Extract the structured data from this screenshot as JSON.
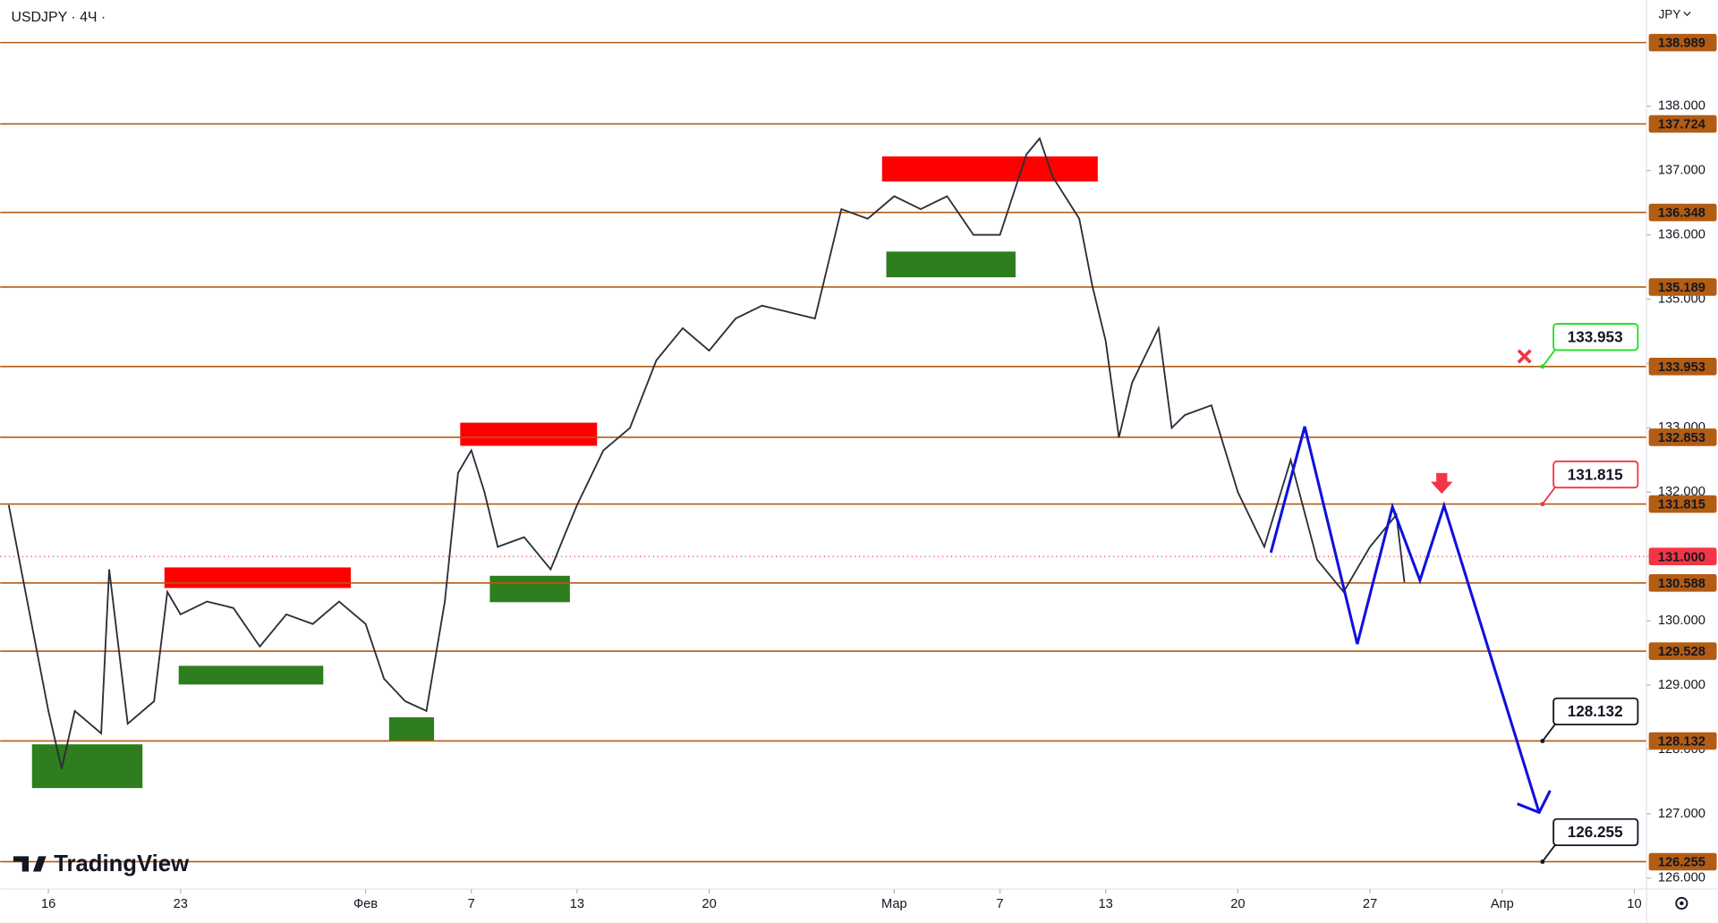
{
  "header": {
    "symbol": "USDJPY · 4Ч ·",
    "currency": "JPY",
    "logo": "TradingView"
  },
  "chart_data": {
    "type": "line",
    "xlim": [
      -1.823,
      60.464
    ],
    "ylim": [
      125.83,
      139.651
    ],
    "xticks": [
      {
        "value": 0,
        "label": "16"
      },
      {
        "value": 5,
        "label": "23"
      },
      {
        "value": 12,
        "label": "Фев"
      },
      {
        "value": 16,
        "label": "7"
      },
      {
        "value": 20,
        "label": "13"
      },
      {
        "value": 25,
        "label": "20"
      },
      {
        "value": 32,
        "label": "Мар"
      },
      {
        "value": 36,
        "label": "7"
      },
      {
        "value": 40,
        "label": "13"
      },
      {
        "value": 45,
        "label": "20"
      },
      {
        "value": 50,
        "label": "27"
      },
      {
        "value": 55,
        "label": "Апр"
      },
      {
        "value": 60,
        "label": "10"
      }
    ],
    "yticks": [
      {
        "value": 126,
        "label": "126.000"
      },
      {
        "value": 127,
        "label": "127.000"
      },
      {
        "value": 128,
        "label": "128.000"
      },
      {
        "value": 129,
        "label": "129.000"
      },
      {
        "value": 130,
        "label": "130.000"
      },
      {
        "value": 131,
        "label": "131.000"
      },
      {
        "value": 132,
        "label": "132.000"
      },
      {
        "value": 133,
        "label": "133.000"
      },
      {
        "value": 134,
        "label": "134.000"
      },
      {
        "value": 135,
        "label": "135.000"
      },
      {
        "value": 136,
        "label": "136.000"
      },
      {
        "value": 137,
        "label": "137.000"
      },
      {
        "value": 138,
        "label": "138.000"
      }
    ],
    "series": [
      {
        "color": "#2a2e39",
        "x": [
          -1.5,
          0,
          0.5,
          1,
          2,
          2.3,
          3,
          4,
          4.5,
          5,
          6,
          7,
          8,
          9,
          10,
          11,
          12,
          12.7,
          13.5,
          14.3,
          15,
          15.5,
          16,
          16.5,
          17,
          18,
          19,
          19.5,
          20,
          21,
          22,
          23,
          24,
          25,
          26,
          27,
          28,
          29,
          30,
          31,
          32,
          33,
          34,
          35,
          36,
          37,
          37.5,
          38,
          39,
          39.5,
          40,
          40.5,
          41,
          42,
          42.5,
          43,
          44,
          45,
          46,
          47,
          48,
          49,
          50,
          51,
          51.3
        ],
        "values": [
          131.8,
          128.6,
          127.7,
          128.6,
          128.25,
          130.8,
          128.4,
          128.75,
          130.45,
          130.1,
          130.3,
          130.2,
          129.6,
          130.1,
          129.95,
          130.3,
          129.95,
          129.1,
          128.75,
          128.6,
          130.3,
          132.3,
          132.65,
          132.0,
          131.15,
          131.3,
          130.8,
          131.3,
          131.8,
          132.65,
          133.0,
          134.05,
          134.55,
          134.2,
          134.7,
          134.9,
          134.8,
          134.7,
          136.4,
          136.25,
          136.6,
          136.4,
          136.6,
          136.0,
          136.0,
          137.25,
          137.5,
          136.9,
          136.25,
          135.2,
          134.35,
          132.85,
          133.7,
          134.55,
          133.0,
          133.2,
          133.35,
          132.0,
          131.15,
          132.5,
          130.95,
          130.45,
          131.15,
          131.65,
          130.6
        ]
      }
    ],
    "projection": {
      "color": "#1010dd",
      "x": [
        46.25,
        47.53,
        49.52,
        50.85,
        51.89,
        52.8,
        56.4
      ],
      "values": [
        131.06,
        133.02,
        129.64,
        131.77,
        130.63,
        131.79,
        127.02
      ]
    },
    "levels": {
      "color": "#b35c14",
      "items": [
        {
          "value": 138.989,
          "label": "138.989"
        },
        {
          "value": 137.724,
          "label": "137.724"
        },
        {
          "value": 136.348,
          "label": "136.348"
        },
        {
          "value": 135.189,
          "label": "135.189"
        },
        {
          "value": 133.953,
          "label": "133.953"
        },
        {
          "value": 132.853,
          "label": "132.853"
        },
        {
          "value": 131.815,
          "label": "131.815"
        },
        {
          "value": 130.588,
          "label": "130.588"
        },
        {
          "value": 129.528,
          "label": "129.528"
        },
        {
          "value": 128.132,
          "label": "128.132"
        },
        {
          "value": 126.255,
          "label": "126.255"
        }
      ]
    },
    "last_price": {
      "value": 131,
      "label": "131.000",
      "color": "#f23645"
    },
    "callouts": [
      {
        "value": 133.953,
        "label": "133.953",
        "color": "#22dd22"
      },
      {
        "value": 131.815,
        "label": "131.815",
        "color": "#f23645"
      },
      {
        "value": 128.132,
        "label": "128.132",
        "color": "#131722"
      },
      {
        "value": 126.255,
        "label": "126.255",
        "color": "#131722"
      }
    ],
    "zones": [
      {
        "color": "#ff0000",
        "x": [
          4.39,
          11.44
        ],
        "values": [
          130.51,
          130.83
        ]
      },
      {
        "color": "#ff0000",
        "x": [
          15.58,
          20.76
        ],
        "values": [
          132.72,
          133.08
        ]
      },
      {
        "color": "#ff0000",
        "x": [
          31.54,
          39.7
        ],
        "values": [
          136.83,
          137.22
        ]
      },
      {
        "color": "#2e7d1e",
        "x": [
          -0.62,
          3.56
        ],
        "values": [
          127.4,
          128.08
        ]
      },
      {
        "color": "#2e7d1e",
        "x": [
          4.93,
          10.4
        ],
        "values": [
          129.01,
          129.3
        ]
      },
      {
        "color": "#2e7d1e",
        "x": [
          12.89,
          14.59
        ],
        "values": [
          128.13,
          128.5
        ]
      },
      {
        "color": "#2e7d1e",
        "x": [
          16.7,
          19.73
        ],
        "values": [
          130.29,
          130.7
        ]
      },
      {
        "color": "#2e7d1e",
        "x": [
          31.7,
          36.59
        ],
        "values": [
          135.34,
          135.74
        ]
      }
    ]
  }
}
